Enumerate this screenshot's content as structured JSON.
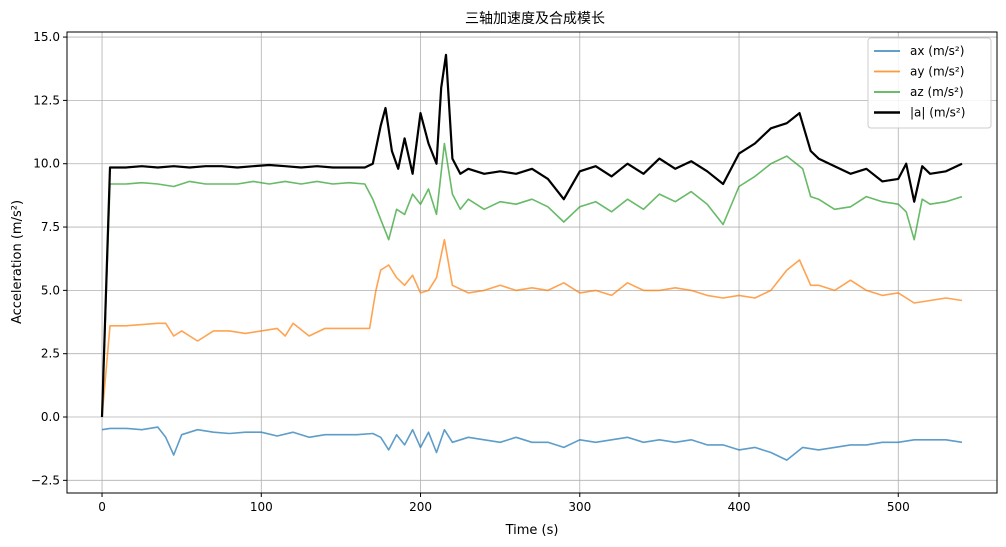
{
  "chart_data": {
    "type": "line",
    "title": "三轴加速度及合成模长",
    "xlabel": "Time (s)",
    "ylabel": "Acceleration (m/s²)",
    "xlim": [
      -22,
      562
    ],
    "ylim": [
      -3.0,
      15.2
    ],
    "xticks": [
      0,
      100,
      200,
      300,
      400,
      500
    ],
    "yticks": [
      -2.5,
      0.0,
      2.5,
      5.0,
      7.5,
      10.0,
      12.5,
      15.0
    ],
    "xtick_labels": [
      "0",
      "100",
      "200",
      "300",
      "400",
      "500"
    ],
    "ytick_labels": [
      "−2.5",
      "0.0",
      "2.5",
      "5.0",
      "7.5",
      "10.0",
      "12.5",
      "15.0"
    ],
    "grid": true,
    "legend_position": "top-right",
    "series": [
      {
        "name": "ax (m/s²)",
        "color": "#1f77b4",
        "x": [
          0,
          5,
          15,
          25,
          35,
          40,
          45,
          50,
          55,
          60,
          70,
          80,
          90,
          100,
          110,
          120,
          130,
          140,
          150,
          160,
          170,
          175,
          180,
          185,
          190,
          195,
          200,
          205,
          210,
          215,
          220,
          230,
          240,
          250,
          260,
          270,
          280,
          290,
          300,
          310,
          320,
          330,
          340,
          350,
          360,
          370,
          380,
          390,
          400,
          410,
          420,
          430,
          440,
          450,
          460,
          470,
          480,
          490,
          500,
          510,
          520,
          530,
          540
        ],
        "y": [
          -0.5,
          -0.45,
          -0.45,
          -0.5,
          -0.4,
          -0.8,
          -1.5,
          -0.7,
          -0.6,
          -0.5,
          -0.6,
          -0.65,
          -0.6,
          -0.6,
          -0.75,
          -0.6,
          -0.8,
          -0.7,
          -0.7,
          -0.7,
          -0.65,
          -0.8,
          -1.3,
          -0.7,
          -1.1,
          -0.5,
          -1.2,
          -0.6,
          -1.4,
          -0.5,
          -1.0,
          -0.8,
          -0.9,
          -1.0,
          -0.8,
          -1.0,
          -1.0,
          -1.2,
          -0.9,
          -1.0,
          -0.9,
          -0.8,
          -1.0,
          -0.9,
          -1.0,
          -0.9,
          -1.1,
          -1.1,
          -1.3,
          -1.2,
          -1.4,
          -1.7,
          -1.2,
          -1.3,
          -1.2,
          -1.1,
          -1.1,
          -1.0,
          -1.0,
          -0.9,
          -0.9,
          -0.9,
          -1.0
        ]
      },
      {
        "name": "ay (m/s²)",
        "color": "#ff7f0e",
        "x": [
          0,
          5,
          15,
          25,
          35,
          40,
          45,
          50,
          55,
          60,
          70,
          80,
          90,
          100,
          110,
          115,
          120,
          130,
          140,
          150,
          160,
          168,
          172,
          175,
          180,
          185,
          190,
          195,
          200,
          205,
          210,
          215,
          220,
          230,
          240,
          250,
          260,
          270,
          280,
          290,
          300,
          310,
          320,
          330,
          340,
          350,
          360,
          370,
          380,
          390,
          400,
          410,
          420,
          430,
          438,
          445,
          450,
          460,
          470,
          480,
          490,
          500,
          510,
          520,
          530,
          540
        ],
        "y": [
          0.0,
          3.6,
          3.6,
          3.65,
          3.7,
          3.7,
          3.2,
          3.4,
          3.2,
          3.0,
          3.4,
          3.4,
          3.3,
          3.4,
          3.5,
          3.2,
          3.7,
          3.2,
          3.5,
          3.5,
          3.5,
          3.5,
          5.0,
          5.8,
          6.0,
          5.5,
          5.2,
          5.6,
          4.9,
          5.0,
          5.5,
          7.0,
          5.2,
          4.9,
          5.0,
          5.2,
          5.0,
          5.1,
          5.0,
          5.3,
          4.9,
          5.0,
          4.8,
          5.3,
          5.0,
          5.0,
          5.1,
          5.0,
          4.8,
          4.7,
          4.8,
          4.7,
          5.0,
          5.8,
          6.2,
          5.2,
          5.2,
          5.0,
          5.4,
          5.0,
          4.8,
          4.9,
          4.5,
          4.6,
          4.7,
          4.6
        ]
      },
      {
        "name": "az (m/s²)",
        "color": "#2ca02c",
        "x": [
          0,
          5,
          15,
          25,
          35,
          45,
          55,
          65,
          75,
          85,
          95,
          105,
          115,
          125,
          135,
          145,
          155,
          165,
          170,
          175,
          180,
          185,
          190,
          195,
          200,
          205,
          210,
          215,
          220,
          225,
          230,
          240,
          250,
          260,
          270,
          280,
          290,
          300,
          310,
          320,
          330,
          340,
          350,
          360,
          370,
          380,
          390,
          400,
          410,
          420,
          430,
          440,
          445,
          450,
          460,
          470,
          480,
          490,
          500,
          505,
          510,
          515,
          520,
          530,
          540
        ],
        "y": [
          0.0,
          9.2,
          9.2,
          9.25,
          9.2,
          9.1,
          9.3,
          9.2,
          9.2,
          9.2,
          9.3,
          9.2,
          9.3,
          9.2,
          9.3,
          9.2,
          9.25,
          9.2,
          8.6,
          7.8,
          7.0,
          8.2,
          8.0,
          8.8,
          8.4,
          9.0,
          8.0,
          10.8,
          8.8,
          8.2,
          8.6,
          8.2,
          8.5,
          8.4,
          8.6,
          8.3,
          7.7,
          8.3,
          8.5,
          8.1,
          8.6,
          8.2,
          8.8,
          8.5,
          8.9,
          8.4,
          7.6,
          9.1,
          9.5,
          10.0,
          10.3,
          9.8,
          8.7,
          8.6,
          8.2,
          8.3,
          8.7,
          8.5,
          8.4,
          8.1,
          7.0,
          8.6,
          8.4,
          8.5,
          8.7
        ]
      },
      {
        "name": "|a| (m/s²)",
        "color": "#000000",
        "x": [
          0,
          5,
          15,
          25,
          35,
          45,
          55,
          65,
          75,
          85,
          95,
          105,
          115,
          125,
          135,
          145,
          155,
          165,
          170,
          175,
          178,
          182,
          186,
          190,
          195,
          200,
          205,
          210,
          213,
          216,
          220,
          225,
          230,
          240,
          250,
          260,
          270,
          280,
          290,
          300,
          310,
          320,
          330,
          340,
          350,
          360,
          370,
          380,
          390,
          400,
          410,
          420,
          430,
          438,
          445,
          450,
          460,
          470,
          480,
          490,
          500,
          505,
          510,
          515,
          520,
          530,
          540
        ],
        "y": [
          0.0,
          9.85,
          9.85,
          9.9,
          9.85,
          9.9,
          9.85,
          9.9,
          9.9,
          9.85,
          9.9,
          9.95,
          9.9,
          9.85,
          9.9,
          9.85,
          9.85,
          9.85,
          10.0,
          11.5,
          12.2,
          10.5,
          9.8,
          11.0,
          9.6,
          12.0,
          10.8,
          10.0,
          13.0,
          14.3,
          10.2,
          9.6,
          9.8,
          9.6,
          9.7,
          9.6,
          9.8,
          9.4,
          8.6,
          9.7,
          9.9,
          9.5,
          10.0,
          9.6,
          10.2,
          9.8,
          10.1,
          9.7,
          9.2,
          10.4,
          10.8,
          11.4,
          11.6,
          12.0,
          10.5,
          10.2,
          9.9,
          9.6,
          9.8,
          9.3,
          9.4,
          10.0,
          8.5,
          9.9,
          9.6,
          9.7,
          10.0
        ]
      }
    ]
  }
}
